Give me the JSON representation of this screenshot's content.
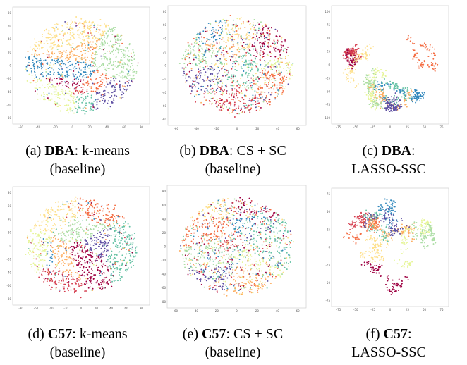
{
  "colors": [
    "#9e0142",
    "#d53e4f",
    "#f46d43",
    "#fdae61",
    "#fee08b",
    "#e6f598",
    "#abdda4",
    "#66c2a5",
    "#3288bd",
    "#5e4fa2"
  ],
  "panels": [
    {
      "id": "a",
      "prefix": "(a) ",
      "dataset": "DBA",
      "method": ": k-means",
      "line2": "(baseline)",
      "style": "blobby",
      "xticks": [
        "-60",
        "-40",
        "-20",
        "0",
        "20",
        "40",
        "60",
        "80"
      ],
      "yticks": [
        "80",
        "60",
        "40",
        "20",
        "0",
        "-20",
        "-40",
        "-60",
        "-80"
      ]
    },
    {
      "id": "b",
      "prefix": "(b) ",
      "dataset": "DBA",
      "method": ": CS + SC",
      "line2": "(baseline)",
      "style": "mixed",
      "xticks": [
        "-60",
        "-40",
        "-20",
        "0",
        "20",
        "40",
        "60"
      ],
      "yticks": [
        "80",
        "60",
        "40",
        "20",
        "0",
        "-20",
        "-40",
        "-60",
        "-80"
      ]
    },
    {
      "id": "c",
      "prefix": "(c) ",
      "dataset": "DBA",
      "method": ":",
      "line2": "LASSO-SSC",
      "style": "clustered",
      "xticks": [
        "-75",
        "-50",
        "-25",
        "0",
        "25",
        "50",
        "75"
      ],
      "yticks": [
        "100",
        "75",
        "50",
        "25",
        "0",
        "-25",
        "-50",
        "-75",
        "-100"
      ]
    },
    {
      "id": "d",
      "prefix": "(d) ",
      "dataset": "C57",
      "method": ": k-means",
      "line2": "(baseline)",
      "style": "blobby",
      "xticks": [
        "-80",
        "-60",
        "-40",
        "-20",
        "0",
        "20",
        "40",
        "60",
        "80"
      ],
      "yticks": [
        "80",
        "60",
        "40",
        "20",
        "0",
        "-20",
        "-40",
        "-60",
        "-80"
      ]
    },
    {
      "id": "e",
      "prefix": "(e) ",
      "dataset": "C57",
      "method": ": CS + SC",
      "line2": "(baseline)",
      "style": "mixed",
      "xticks": [
        "-60",
        "-40",
        "-20",
        "0",
        "20",
        "40",
        "60"
      ],
      "yticks": [
        "80",
        "60",
        "40",
        "20",
        "0",
        "-20",
        "-40",
        "-60",
        "-80"
      ]
    },
    {
      "id": "f",
      "prefix": "(f) ",
      "dataset": "C57",
      "method": ":",
      "line2": "LASSO-SSC",
      "style": "clustered",
      "xticks": [
        "-75",
        "-50",
        "-25",
        "0",
        "25",
        "50",
        "75"
      ],
      "yticks": [
        "75",
        "50",
        "25",
        "0",
        "-25",
        "-50",
        "-75"
      ]
    }
  ],
  "chart_data": [
    {
      "type": "scatter",
      "panel": "a",
      "xlim": [
        -80,
        80
      ],
      "ylim": [
        -80,
        80
      ]
    },
    {
      "type": "scatter",
      "panel": "b",
      "xlim": [
        -80,
        80
      ],
      "ylim": [
        -80,
        80
      ]
    },
    {
      "type": "scatter",
      "panel": "c",
      "xlim": [
        -100,
        100
      ],
      "ylim": [
        -100,
        100
      ]
    },
    {
      "type": "scatter",
      "panel": "d",
      "xlim": [
        -80,
        80
      ],
      "ylim": [
        -80,
        80
      ]
    },
    {
      "type": "scatter",
      "panel": "e",
      "xlim": [
        -80,
        80
      ],
      "ylim": [
        -80,
        80
      ]
    },
    {
      "type": "scatter",
      "panel": "f",
      "xlim": [
        -100,
        100
      ],
      "ylim": [
        -100,
        100
      ]
    }
  ]
}
